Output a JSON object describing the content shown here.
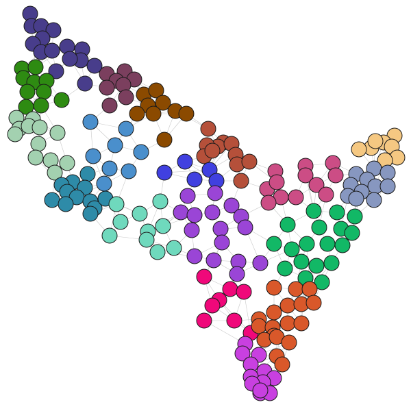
{
  "diagram": {
    "type": "clustered-node-link-graph",
    "background": "#ffffff",
    "edge_color": "#c8c8c8",
    "node_outline": "#1a1a1a",
    "clusters": [
      {
        "id": "navy",
        "color": "#483d8b"
      },
      {
        "id": "green",
        "color": "#2e8b12"
      },
      {
        "id": "plum",
        "color": "#7b3f5e"
      },
      {
        "id": "brown",
        "color": "#8b4a00"
      },
      {
        "id": "mint",
        "color": "#a3d1b0"
      },
      {
        "id": "steel-blue",
        "color": "#4a8fcc"
      },
      {
        "id": "teal",
        "color": "#2e8ba8"
      },
      {
        "id": "rust",
        "color": "#b5503a"
      },
      {
        "id": "royal-blue",
        "color": "#4040e0"
      },
      {
        "id": "aquamarine",
        "color": "#6fd9bd"
      },
      {
        "id": "violet",
        "color": "#9a45d6"
      },
      {
        "id": "rose",
        "color": "#cc4d85"
      },
      {
        "id": "peach",
        "color": "#f5c882"
      },
      {
        "id": "slate",
        "color": "#8797c0"
      },
      {
        "id": "emerald",
        "color": "#12b866"
      },
      {
        "id": "magenta",
        "color": "#f0087a"
      },
      {
        "id": "orange",
        "color": "#d9582a"
      },
      {
        "id": "orchid",
        "color": "#c840e0"
      }
    ]
  }
}
